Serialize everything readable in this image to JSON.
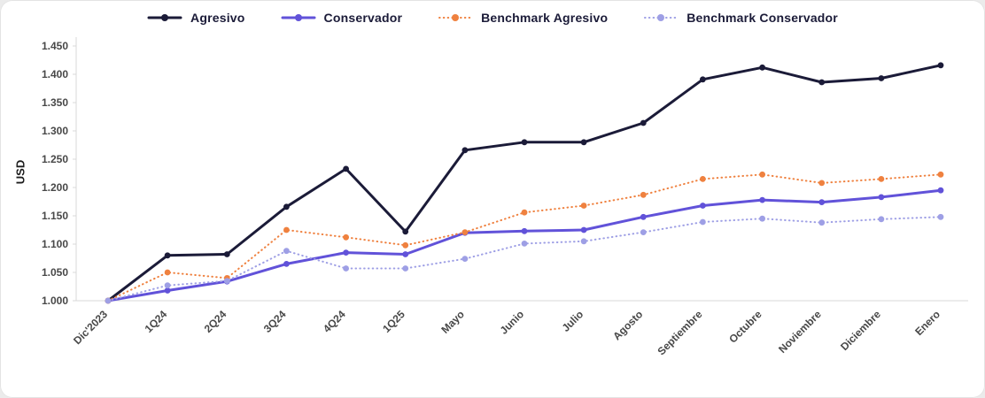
{
  "colors": {
    "card_bg": "#ffffff",
    "axis_line": "#d9d9d9",
    "tick_text": "#484848",
    "legend_text": "#1b1b38",
    "agresivo": "#1b1b38",
    "conservador": "#6152d9",
    "benchmark_agresivo": "#ef813f",
    "benchmark_conservador": "#9e9fe5"
  },
  "chart_data": {
    "type": "line",
    "title": "",
    "xlabel": "",
    "ylabel": "USD",
    "ylim": [
      1.0,
      1.45
    ],
    "grid": false,
    "legend_position": "top",
    "y_ticks": [
      "1.000",
      "1.050",
      "1.100",
      "1.150",
      "1.200",
      "1.250",
      "1.300",
      "1.350",
      "1.400",
      "1.450"
    ],
    "categories": [
      "Dic'2023",
      "1Q24",
      "2Q24",
      "3Q24",
      "4Q24",
      "1Q25",
      "Mayo",
      "Junio",
      "Julio",
      "Agosto",
      "Septiembre",
      "Octubre",
      "Noviembre",
      "Diciembre",
      "Enero"
    ],
    "series": [
      {
        "name": "Agresivo",
        "color": "#1b1b38",
        "style": "solid",
        "width": 3,
        "values": [
          1.0,
          1.08,
          1.082,
          1.166,
          1.233,
          1.122,
          1.266,
          1.28,
          1.28,
          1.314,
          1.391,
          1.412,
          1.386,
          1.393,
          1.416
        ]
      },
      {
        "name": "Conservador",
        "color": "#6152d9",
        "style": "solid",
        "width": 3,
        "values": [
          1.0,
          1.018,
          1.034,
          1.065,
          1.085,
          1.082,
          1.12,
          1.123,
          1.125,
          1.148,
          1.168,
          1.178,
          1.174,
          1.183,
          1.195
        ]
      },
      {
        "name": "Benchmark Agresivo",
        "color": "#ef813f",
        "style": "dotted",
        "width": 2,
        "values": [
          1.0,
          1.05,
          1.04,
          1.125,
          1.112,
          1.098,
          1.121,
          1.156,
          1.168,
          1.187,
          1.215,
          1.223,
          1.208,
          1.215,
          1.223
        ]
      },
      {
        "name": "Benchmark Conservador",
        "color": "#9e9fe5",
        "style": "dotted",
        "width": 2,
        "values": [
          1.0,
          1.027,
          1.035,
          1.088,
          1.057,
          1.057,
          1.074,
          1.101,
          1.105,
          1.121,
          1.139,
          1.145,
          1.138,
          1.144,
          1.148
        ]
      }
    ]
  }
}
